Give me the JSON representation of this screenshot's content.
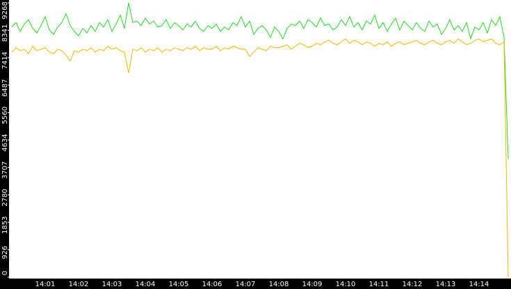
{
  "chart_data": {
    "type": "line",
    "categories": [
      null,
      null,
      null,
      null,
      null,
      null,
      null,
      null,
      "14:01",
      null,
      null,
      null,
      null,
      null,
      null,
      null,
      "14:02",
      null,
      null,
      null,
      null,
      null,
      null,
      null,
      "14:03",
      null,
      null,
      null,
      null,
      null,
      null,
      null,
      "14:04",
      null,
      null,
      null,
      null,
      null,
      null,
      null,
      "14:05",
      null,
      null,
      null,
      null,
      null,
      null,
      null,
      "14:06",
      null,
      null,
      null,
      null,
      null,
      null,
      null,
      "14:07",
      null,
      null,
      null,
      null,
      null,
      null,
      null,
      "14:08",
      null,
      null,
      null,
      null,
      null,
      null,
      null,
      "14:09",
      null,
      null,
      null,
      null,
      null,
      null,
      null,
      "14:10",
      null,
      null,
      null,
      null,
      null,
      null,
      null,
      "14:11",
      null,
      null,
      null,
      null,
      null,
      null,
      null,
      "14:12",
      null,
      null,
      null,
      null,
      null,
      null,
      null,
      "14:13",
      null,
      null,
      null,
      null,
      null,
      null,
      null,
      "14:14",
      null,
      null,
      null,
      null,
      null,
      null,
      null
    ],
    "series": [
      {
        "color": "#22dd22",
        "values": [
          8450,
          8600,
          8300,
          8550,
          8700,
          8400,
          8250,
          8500,
          8800,
          8350,
          8200,
          8450,
          8600,
          8900,
          8500,
          8300,
          8150,
          8400,
          8250,
          8500,
          8300,
          8600,
          8450,
          8700,
          8300,
          8550,
          8850,
          8400,
          9268,
          8600,
          8650,
          8500,
          8750,
          8550,
          8650,
          8450,
          8500,
          8700,
          8400,
          8600,
          8500,
          8350,
          8550,
          8450,
          8650,
          8400,
          8300,
          8500,
          8400,
          8550,
          8300,
          8450,
          8350,
          8600,
          8500,
          8800,
          8450,
          8650,
          8200,
          8400,
          8500,
          8350,
          8100,
          8450,
          8300,
          8050,
          8400,
          8550,
          8500,
          8650,
          8400,
          8700,
          8600,
          8450,
          8750,
          8500,
          8550,
          8350,
          8450,
          8700,
          8500,
          8800,
          8450,
          8600,
          8350,
          8650,
          8550,
          8850,
          8400,
          8600,
          8300,
          8550,
          8750,
          8350,
          8650,
          8500,
          8350,
          8600,
          8400,
          8300,
          8650,
          8450,
          8550,
          8200,
          8400,
          8700,
          8350,
          8500,
          8300,
          8600,
          8050,
          8450,
          8350,
          8600,
          8250,
          8700,
          8500,
          8800,
          8100,
          3985
        ]
      },
      {
        "color": "#f5b800",
        "values": [
          7600,
          7750,
          7650,
          7700,
          7550,
          7800,
          7650,
          7700,
          7750,
          7600,
          7550,
          7700,
          7650,
          7500,
          7300,
          7650,
          7600,
          7700,
          7650,
          7750,
          7600,
          7700,
          7650,
          7800,
          7700,
          7750,
          7650,
          7600,
          6900,
          7700,
          7650,
          7750,
          7600,
          7700,
          7650,
          7750,
          7600,
          7700,
          7650,
          7750,
          7700,
          7650,
          7750,
          7700,
          7800,
          7650,
          7750,
          7700,
          7700,
          7800,
          7650,
          7750,
          7700,
          7800,
          7750,
          7700,
          7700,
          7450,
          7600,
          7750,
          7700,
          7650,
          7800,
          7750,
          7750,
          7800,
          7850,
          7700,
          7800,
          7900,
          7850,
          7750,
          7800,
          7900,
          7850,
          7950,
          8000,
          7900,
          7850,
          7950,
          8050,
          7900,
          8000,
          7950,
          7850,
          7950,
          7900,
          7800,
          7900,
          7850,
          7950,
          7800,
          7900,
          7950,
          7850,
          7900,
          7950,
          8000,
          7900,
          7850,
          7950,
          8000,
          7900,
          7850,
          7950,
          8000,
          7900,
          8050,
          7950,
          7850,
          7900,
          8000,
          8050,
          7950,
          8000,
          8050,
          7900,
          7850,
          7950,
          0
        ]
      }
    ],
    "ylim": [
      0,
      9268
    ],
    "yticks": [
      0,
      926,
      1853,
      2780,
      3707,
      4634,
      5560,
      6487,
      7414,
      8341,
      9268
    ]
  }
}
